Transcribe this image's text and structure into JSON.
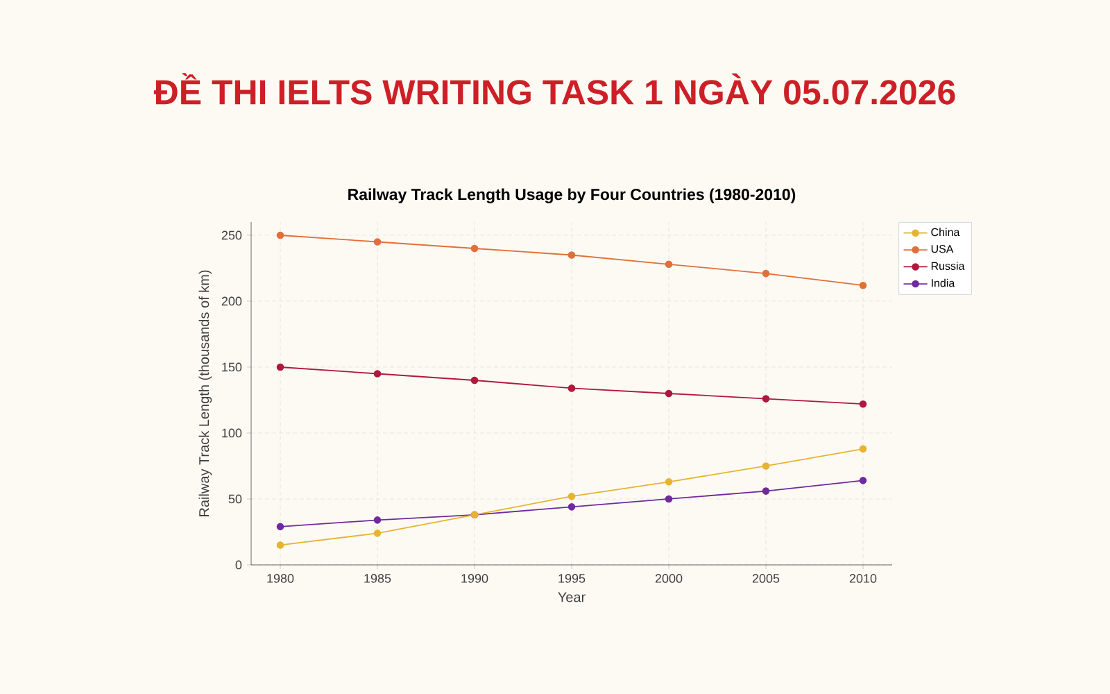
{
  "chart_data": {
    "type": "line",
    "title": "ĐỀ THI IELTS WRITING TASK 1 NGÀY 05.07.2026",
    "subtitle": "Railway Track Length Usage by Four Countries (1980-2010)",
    "xlabel": "Year",
    "ylabel": "Railway Track Length (thousands of km)",
    "x": [
      1980,
      1985,
      1990,
      1995,
      2000,
      2005,
      2010
    ],
    "series": [
      {
        "name": "China",
        "color": "#e6b432",
        "values": [
          15,
          24,
          38,
          52,
          63,
          75,
          88
        ]
      },
      {
        "name": "USA",
        "color": "#e0703a",
        "values": [
          250,
          245,
          240,
          235,
          228,
          221,
          212
        ]
      },
      {
        "name": "Russia",
        "color": "#b0183e",
        "values": [
          150,
          145,
          140,
          134,
          130,
          126,
          122
        ]
      },
      {
        "name": "India",
        "color": "#6f2a9e",
        "values": [
          29,
          34,
          38,
          44,
          50,
          56,
          64
        ]
      }
    ],
    "xlim": [
      1978.5,
      2011.5
    ],
    "ylim": [
      0,
      260
    ],
    "xticks": [
      1980,
      1985,
      1990,
      1995,
      2000,
      2005,
      2010
    ],
    "yticks": [
      0,
      50,
      100,
      150,
      200,
      250
    ],
    "grid": true,
    "legend": "top right",
    "marker": "circle",
    "line_style": "solid"
  }
}
